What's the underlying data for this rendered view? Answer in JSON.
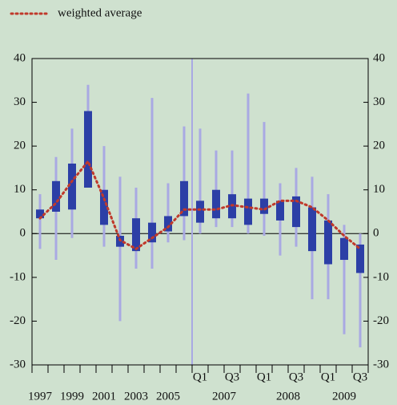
{
  "chart_data": {
    "type": "range",
    "categories": [
      "1997",
      null,
      "1999",
      null,
      "2001",
      null,
      "2003",
      null,
      "2005",
      null,
      "Q1",
      null,
      "Q3",
      null,
      "Q1",
      null,
      "Q3",
      null,
      "Q1",
      null,
      "Q3"
    ],
    "year_groups": [
      "2007",
      "2008",
      "2009"
    ],
    "whisker_low": [
      -3.5,
      -6,
      -1,
      11,
      -3,
      -20,
      -8,
      -8,
      -2,
      -1.5,
      0,
      1.5,
      1.5,
      0,
      -0.5,
      -5,
      -3,
      -15,
      -15,
      -23,
      -26
    ],
    "whisker_high": [
      9,
      17.5,
      24,
      34,
      20,
      13,
      10.5,
      31,
      11.5,
      24.5,
      24,
      19,
      19,
      32,
      25.5,
      11.5,
      15,
      13,
      9,
      2,
      0
    ],
    "box_low": [
      3.5,
      5,
      5.5,
      10.5,
      2,
      -3,
      -4,
      -2,
      0.5,
      4,
      2.5,
      3.5,
      3.5,
      2,
      4.5,
      3,
      1.5,
      -4,
      -7,
      -6,
      -9
    ],
    "box_high": [
      5.5,
      12,
      16,
      28,
      10,
      -0.5,
      3.5,
      2.5,
      4,
      12,
      7.5,
      10,
      9,
      8,
      8,
      7.5,
      8.5,
      6,
      3,
      -1,
      -2.5
    ],
    "whisker_color": "#a9a9e3",
    "box_color": "#2c3fa6",
    "series": [
      {
        "name": "weighted average",
        "color": "#c0392b",
        "values": [
          3.5,
          7,
          12,
          16.5,
          8,
          -1.5,
          -3.5,
          -1,
          1.5,
          5.5,
          5.5,
          5.5,
          6.5,
          6,
          5.5,
          7.5,
          7.5,
          6,
          3,
          -0.5,
          -3.5
        ]
      }
    ],
    "ylim": [
      -30,
      40
    ],
    "yticks": [
      -30,
      -20,
      -10,
      0,
      10,
      20,
      30,
      40
    ]
  }
}
